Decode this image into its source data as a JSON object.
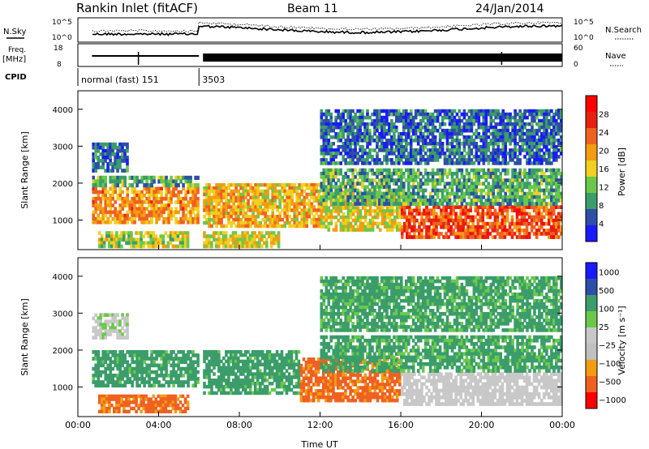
{
  "header": {
    "title": "Rankin Inlet (fitACF)",
    "beam": "Beam 11",
    "date": "24/Jan/2014"
  },
  "noise_panel": {
    "left_label": "N.Sky",
    "left_ticks": [
      "10^5",
      "10^0"
    ],
    "right_label": "N.Search",
    "right_ticks": [
      "10^5",
      "10^0"
    ]
  },
  "freq_panel": {
    "left_label_1": "Freq.",
    "left_label_2": "[MHz]",
    "left_ticks": [
      "18",
      "8"
    ],
    "right_label": "Nave",
    "right_ticks": [
      "60",
      "0"
    ]
  },
  "cpid": {
    "label": "CPID",
    "modes": [
      {
        "text": "normal (fast) 151",
        "start_hour": 0,
        "end_hour": 6
      },
      {
        "text": "3503",
        "start_hour": 6,
        "end_hour": 24
      }
    ]
  },
  "colors": {
    "power": [
      "#1a1aff",
      "#2d4fa8",
      "#3a9d6a",
      "#6ac94a",
      "#f0d020",
      "#f39c12",
      "#f06020",
      "#e82010",
      "#ff0000"
    ],
    "velocity": [
      "#ff0000",
      "#f06020",
      "#f39c12",
      "#c0c0c0",
      "#c8c8c8",
      "#6ac94a",
      "#3a9d6a",
      "#2d4fa8",
      "#1a1aff"
    ]
  },
  "chart_data": [
    {
      "type": "heatmap",
      "name": "power",
      "ylabel": "Slant Range [km]",
      "xlabel": "",
      "xlim": [
        0,
        24
      ],
      "ylim": [
        200,
        4500
      ],
      "yticks": [
        1000,
        2000,
        3000,
        4000
      ],
      "xticks": [
        0,
        4,
        8,
        12,
        16,
        20,
        24
      ],
      "colorbar_label": "Power [dB]",
      "colorbar_ticks": [
        "4",
        "8",
        "12",
        "16",
        "20",
        "24",
        "28"
      ],
      "bands": [
        {
          "x": [
            0.7,
            6.0
          ],
          "y": [
            900,
            1900
          ],
          "value": 22
        },
        {
          "x": [
            0.7,
            6.0
          ],
          "y": [
            1900,
            2200
          ],
          "value": 12
        },
        {
          "x": [
            0.7,
            2.5
          ],
          "y": [
            2300,
            3100
          ],
          "value": 8
        },
        {
          "x": [
            1.0,
            5.5
          ],
          "y": [
            250,
            700
          ],
          "value": 16
        },
        {
          "x": [
            6.2,
            12.0
          ],
          "y": [
            800,
            2000
          ],
          "value": 20
        },
        {
          "x": [
            6.2,
            10.0
          ],
          "y": [
            250,
            700
          ],
          "value": 18
        },
        {
          "x": [
            12.0,
            16.0
          ],
          "y": [
            700,
            1800
          ],
          "value": 18
        },
        {
          "x": [
            16.0,
            24.0
          ],
          "y": [
            500,
            1400
          ],
          "value": 26
        },
        {
          "x": [
            12.0,
            24.0
          ],
          "y": [
            1400,
            2400
          ],
          "value": 12
        },
        {
          "x": [
            12.0,
            24.0
          ],
          "y": [
            2500,
            4000
          ],
          "value": 8
        }
      ]
    },
    {
      "type": "heatmap",
      "name": "velocity",
      "ylabel": "Slant Range [km]",
      "xlabel": "Time UT",
      "xlim": [
        0,
        24
      ],
      "ylim": [
        200,
        4500
      ],
      "yticks": [
        1000,
        2000,
        3000,
        4000
      ],
      "xticks": [
        0,
        4,
        8,
        12,
        16,
        20,
        24
      ],
      "xticklabels": [
        "00:00",
        "04:00",
        "08:00",
        "12:00",
        "16:00",
        "20:00",
        "00:00"
      ],
      "colorbar_label": "Velocity [m s⁻¹]",
      "colorbar_ticks": [
        "1000",
        "500",
        "100",
        "25",
        "−25",
        "−100",
        "−500",
        "−1000"
      ],
      "bands": [
        {
          "x": [
            0.7,
            6.0
          ],
          "y": [
            1000,
            2000
          ],
          "value": 200
        },
        {
          "x": [
            0.7,
            2.5
          ],
          "y": [
            2300,
            3000
          ],
          "value": 20
        },
        {
          "x": [
            1.0,
            5.5
          ],
          "y": [
            300,
            800
          ],
          "value": -150
        },
        {
          "x": [
            6.2,
            11.0
          ],
          "y": [
            800,
            2000
          ],
          "value": 200
        },
        {
          "x": [
            11.0,
            16.0
          ],
          "y": [
            600,
            1800
          ],
          "value": -150
        },
        {
          "x": [
            16.0,
            24.0
          ],
          "y": [
            500,
            1400
          ],
          "value": 10
        },
        {
          "x": [
            12.0,
            24.0
          ],
          "y": [
            1400,
            2400
          ],
          "value": 150
        },
        {
          "x": [
            12.0,
            24.0
          ],
          "y": [
            2500,
            4000
          ],
          "value": 150
        }
      ]
    }
  ]
}
